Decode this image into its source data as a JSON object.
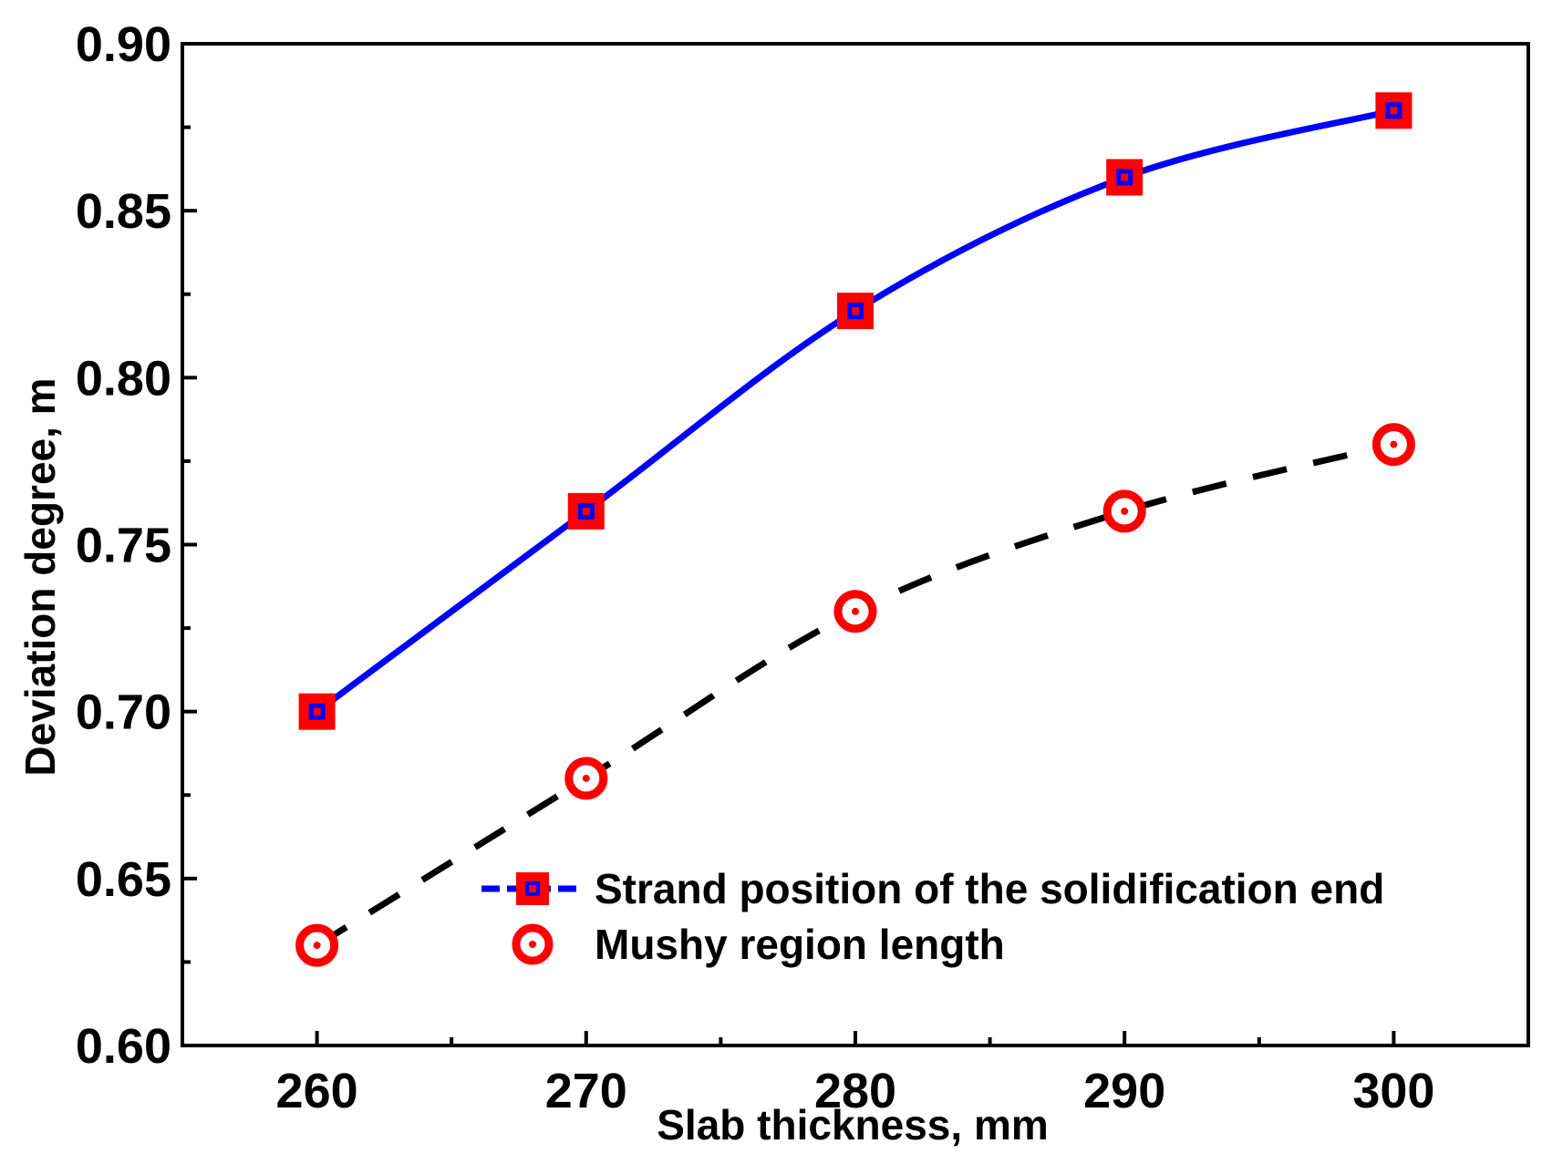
{
  "chart_data": {
    "type": "line",
    "title": "",
    "xlabel": "Slab thickness, mm",
    "ylabel": "Deviation degree, m",
    "xlim": [
      255,
      305
    ],
    "ylim": [
      0.6,
      0.9
    ],
    "x_ticks": [
      "260",
      "270",
      "280",
      "290",
      "300"
    ],
    "x_tick_values": [
      260,
      270,
      280,
      290,
      300
    ],
    "y_ticks": [
      "0.60",
      "0.65",
      "0.70",
      "0.75",
      "0.80",
      "0.85",
      "0.90"
    ],
    "y_tick_values": [
      0.6,
      0.65,
      0.7,
      0.75,
      0.8,
      0.85,
      0.9
    ],
    "grid": false,
    "legend_position": "lower-right",
    "series": [
      {
        "name": "Strand position of the solidification end",
        "x": [
          260,
          270,
          280,
          290,
          300
        ],
        "values": [
          0.7,
          0.76,
          0.82,
          0.86,
          0.88
        ],
        "line_color": "#0000ff",
        "line_style": "solid",
        "marker": "square",
        "marker_color": "#ff0000"
      },
      {
        "name": "Mushy region length",
        "x": [
          260,
          270,
          280,
          290,
          300
        ],
        "values": [
          0.63,
          0.68,
          0.73,
          0.76,
          0.78
        ],
        "line_color": "#000000",
        "line_style": "dashed",
        "marker": "circle",
        "marker_color": "#ff0000"
      }
    ]
  }
}
